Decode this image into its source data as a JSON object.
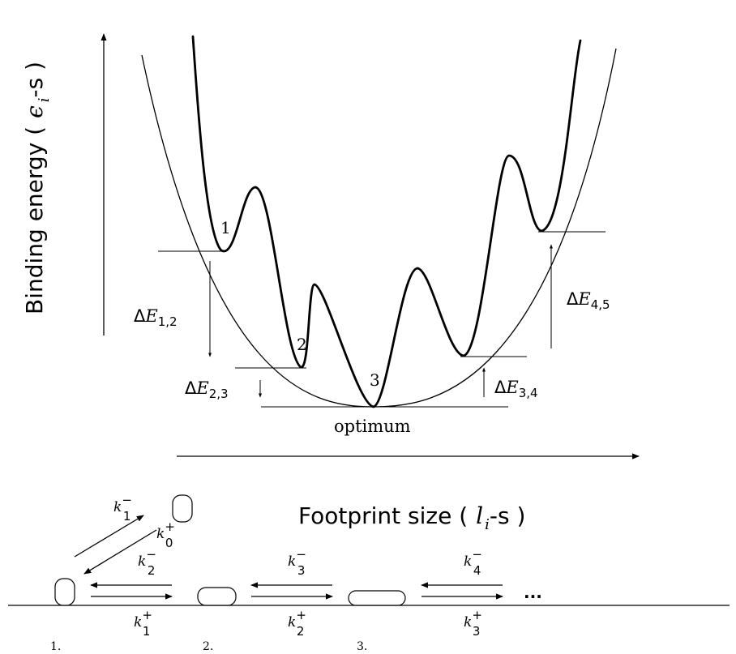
{
  "axes": {
    "y_label_prefix": "Binding energy (",
    "y_label_eps": "ϵ",
    "y_label_sub": "i",
    "y_label_suffix": "-s )",
    "x_label_prefix": "Footprint size (",
    "x_label_l": "l",
    "x_label_sub": "i",
    "x_label_suffix": "-s )"
  },
  "energy_levels": [
    {
      "id": "1",
      "label": "1"
    },
    {
      "id": "2",
      "label": "2"
    },
    {
      "id": "3",
      "label": "3"
    }
  ],
  "gaps": [
    {
      "id": "12",
      "delta": "Δ",
      "E": "E",
      "sub": "1,2"
    },
    {
      "id": "23",
      "delta": "Δ",
      "E": "E",
      "sub": "2,3"
    },
    {
      "id": "34",
      "delta": "Δ",
      "E": "E",
      "sub": "3,4"
    },
    {
      "id": "45",
      "delta": "Δ",
      "E": "E",
      "sub": "4,5"
    }
  ],
  "optimum_label": "optimum",
  "states": [
    {
      "id": "1",
      "label": "1."
    },
    {
      "id": "2",
      "label": "2."
    },
    {
      "id": "3",
      "label": "3."
    }
  ],
  "rates": {
    "k_minus_1": {
      "k": "k",
      "sign": "−",
      "sub": "1"
    },
    "k_plus_0": {
      "k": "k",
      "sign": "+",
      "sub": "0"
    },
    "k_minus_2": {
      "k": "k",
      "sign": "−",
      "sub": "2"
    },
    "k_plus_1": {
      "k": "k",
      "sign": "+",
      "sub": "1"
    },
    "k_minus_3": {
      "k": "k",
      "sign": "−",
      "sub": "3"
    },
    "k_plus_2": {
      "k": "k",
      "sign": "+",
      "sub": "2"
    },
    "k_minus_4": {
      "k": "k",
      "sign": "−",
      "sub": "4"
    },
    "k_plus_3": {
      "k": "k",
      "sign": "+",
      "sub": "3"
    }
  },
  "ellipsis": "..."
}
